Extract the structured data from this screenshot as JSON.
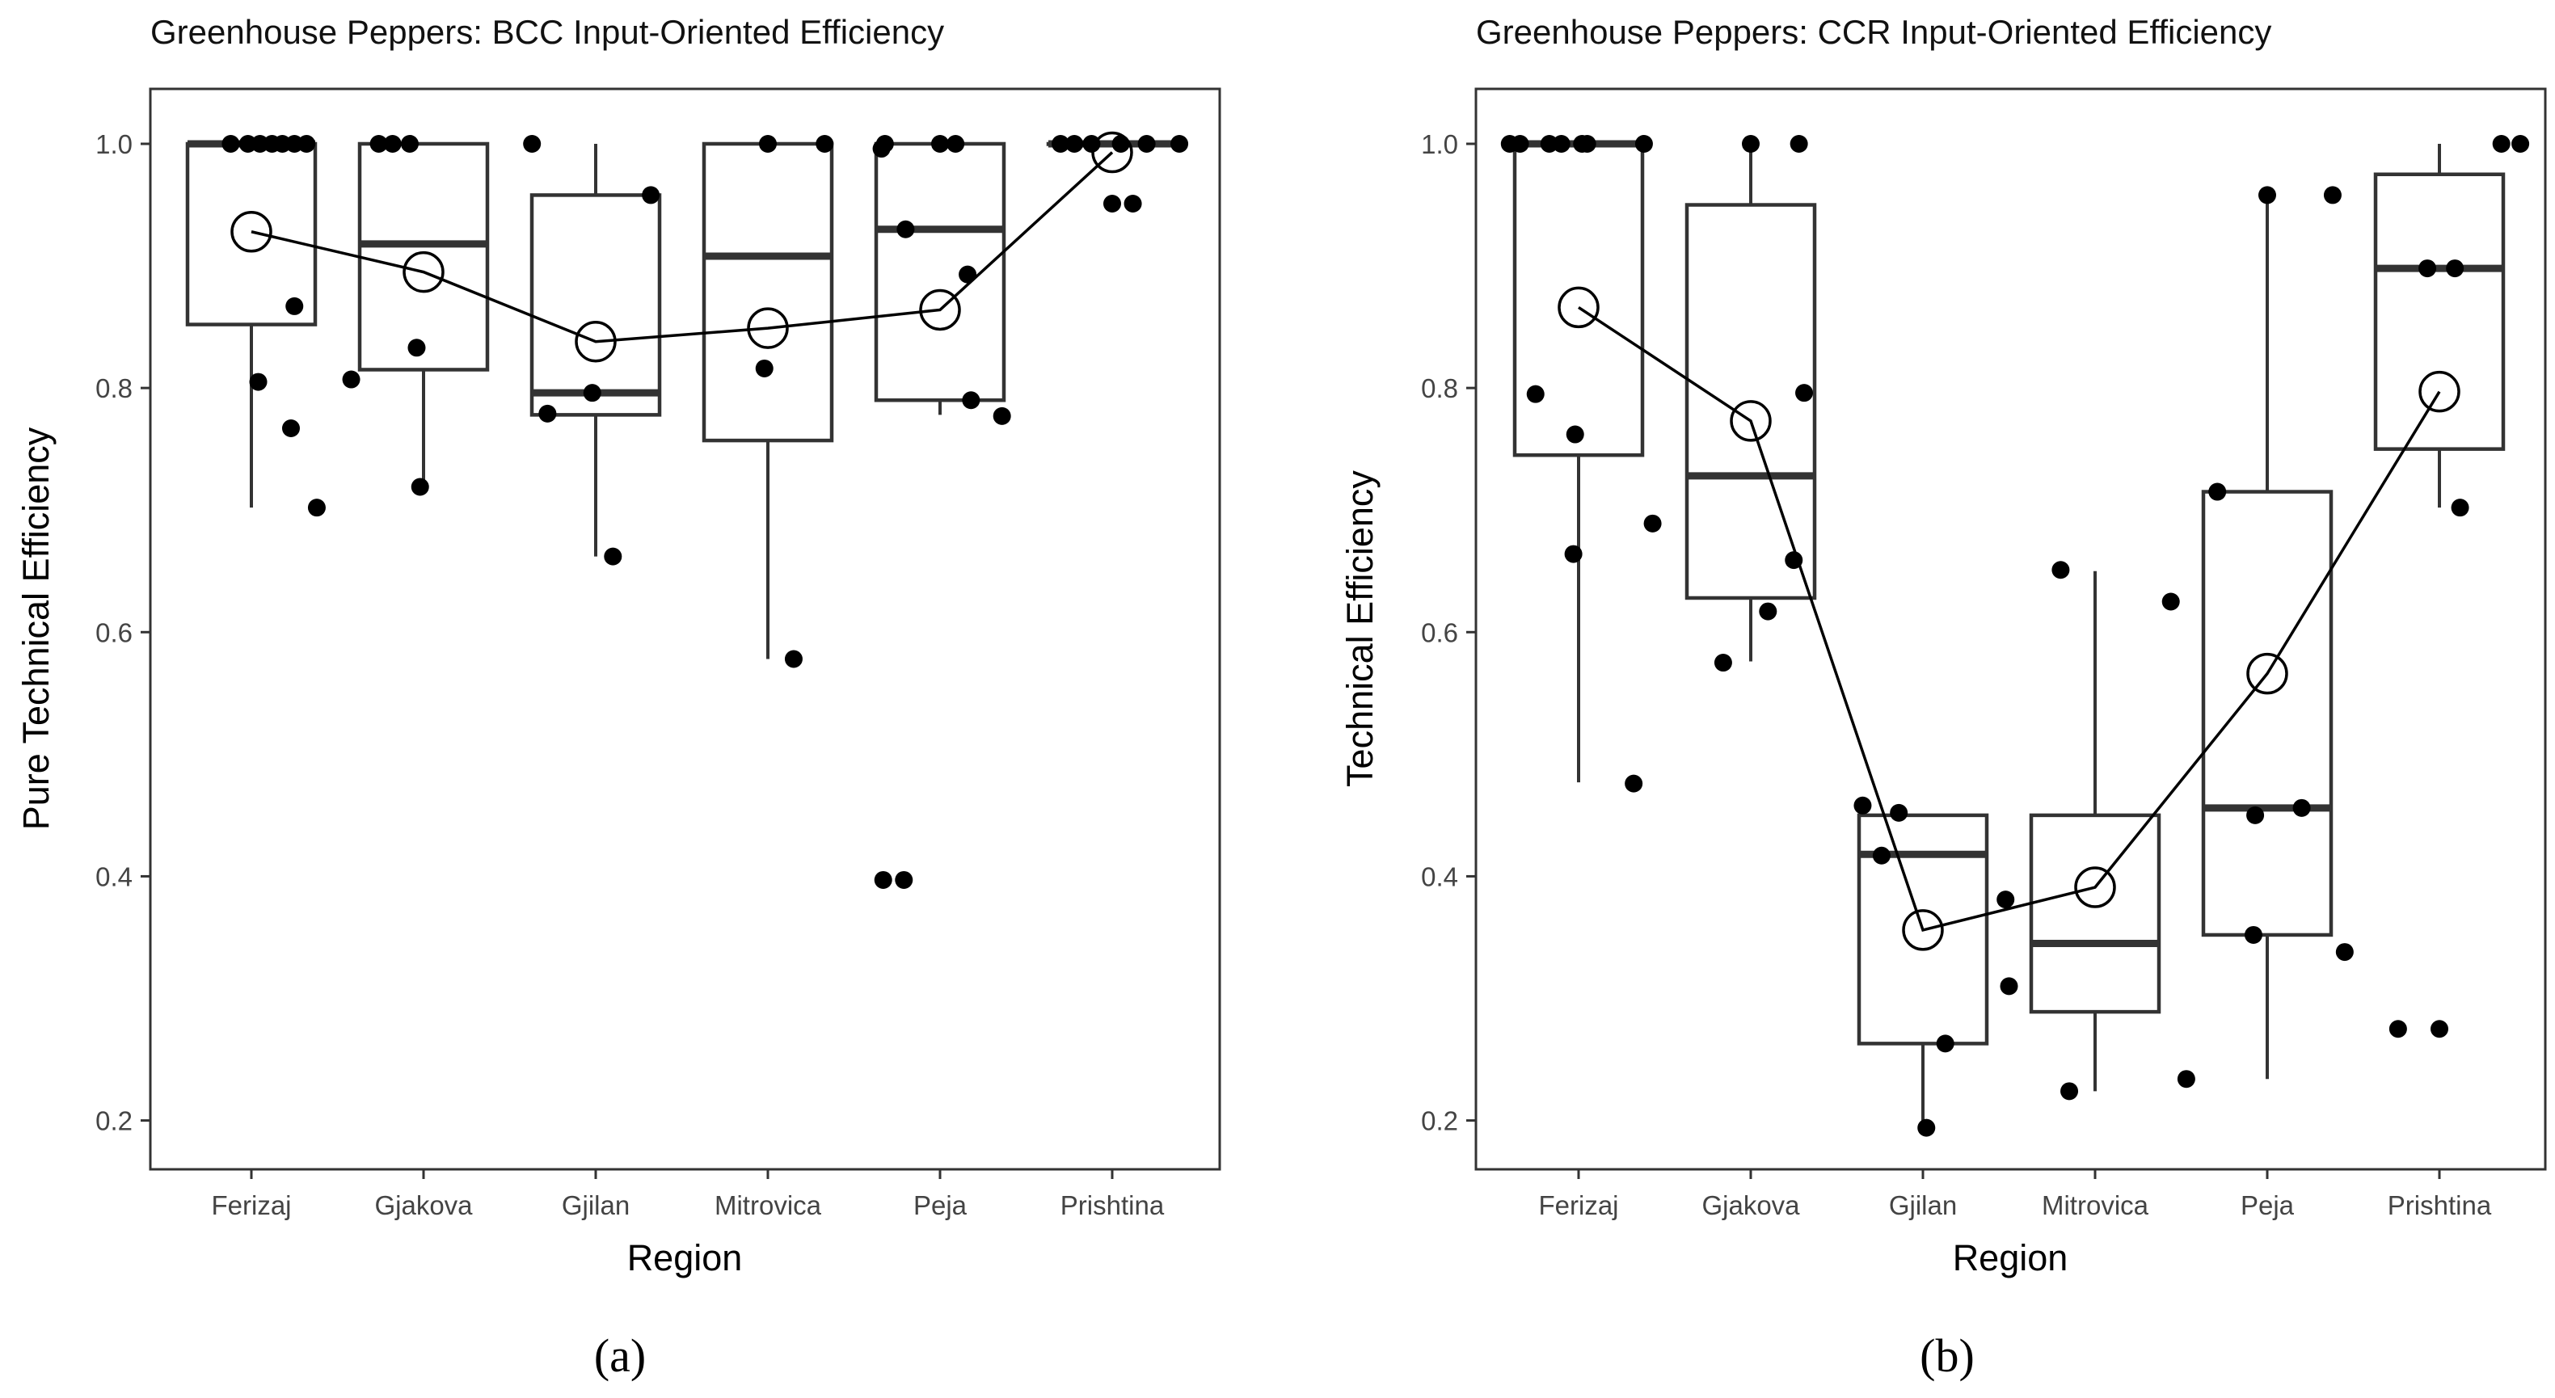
{
  "chart_data": [
    {
      "type": "boxplot",
      "label": "(a)",
      "title": "Greenhouse Peppers: BCC Input-Oriented Efficiency",
      "xlabel": "Region",
      "ylabel": "Pure Technical Efficiency",
      "ylim": [
        0.16,
        1.045
      ],
      "yticks": [
        "0.2",
        "0.4",
        "0.6",
        "0.8",
        "1.0"
      ],
      "categories": [
        "Ferizaj",
        "Gjakova",
        "Gjilan",
        "Mitrovica",
        "Peja",
        "Prishtina"
      ],
      "boxes": [
        {
          "region": "Ferizaj",
          "q1": 0.852,
          "median": 1.0,
          "q3": 1.0,
          "lower": 0.702,
          "upper": 1.0
        },
        {
          "region": "Gjakova",
          "q1": 0.815,
          "median": 0.918,
          "q3": 1.0,
          "lower": 0.719,
          "upper": 1.0
        },
        {
          "region": "Gjilan",
          "q1": 0.778,
          "median": 0.796,
          "q3": 0.958,
          "lower": 0.662,
          "upper": 1.0
        },
        {
          "region": "Mitrovica",
          "q1": 0.757,
          "median": 0.908,
          "q3": 1.0,
          "lower": 0.578,
          "upper": 1.0
        },
        {
          "region": "Peja",
          "q1": 0.79,
          "median": 0.93,
          "q3": 1.0,
          "lower": 0.778,
          "upper": 1.0
        },
        {
          "region": "Prishtina",
          "q1": 1.0,
          "median": 1.0,
          "q3": 1.0,
          "lower": 1.0,
          "upper": 1.0
        }
      ],
      "means": [
        0.928,
        0.895,
        0.838,
        0.849,
        0.864,
        0.993
      ],
      "points": [
        [
          -0.12,
          1.0
        ],
        [
          -0.02,
          1.0
        ],
        [
          0.05,
          1.0
        ],
        [
          0.12,
          1.0
        ],
        [
          0.18,
          1.0
        ],
        [
          0.25,
          1.0
        ],
        [
          0.32,
          1.0
        ],
        [
          0.04,
          0.805
        ],
        [
          0.25,
          0.867
        ],
        [
          0.23,
          0.767
        ],
        [
          0.38,
          0.702
        ],
        [
          0.58,
          0.807
        ],
        [
          0.74,
          1.0
        ],
        [
          0.82,
          1.0
        ],
        [
          0.92,
          1.0
        ],
        [
          0.96,
          0.833
        ],
        [
          0.98,
          0.719
        ],
        [
          1.63,
          1.0
        ],
        [
          1.72,
          0.779
        ],
        [
          1.98,
          0.796
        ],
        [
          2.1,
          0.662
        ],
        [
          2.32,
          0.958
        ],
        [
          2.98,
          0.816
        ],
        [
          3.0,
          1.0
        ],
        [
          3.15,
          0.578
        ],
        [
          3.33,
          1.0
        ],
        [
          3.66,
          0.996
        ],
        [
          3.67,
          0.397
        ],
        [
          3.68,
          1.0
        ],
        [
          3.79,
          0.397
        ],
        [
          3.8,
          0.93
        ],
        [
          4.0,
          1.0
        ],
        [
          4.09,
          1.0
        ],
        [
          4.16,
          0.893
        ],
        [
          4.18,
          0.79
        ],
        [
          4.36,
          0.777
        ],
        [
          4.7,
          1.0
        ],
        [
          4.78,
          1.0
        ],
        [
          4.88,
          1.0
        ],
        [
          5.0,
          0.951
        ],
        [
          5.05,
          1.0
        ],
        [
          5.12,
          0.951
        ],
        [
          5.2,
          1.0
        ],
        [
          5.39,
          1.0
        ]
      ]
    },
    {
      "type": "boxplot",
      "label": "(b)",
      "title": "Greenhouse Peppers: CCR Input-Oriented Efficiency",
      "xlabel": "Region",
      "ylabel": "Technical Efficiency",
      "ylim": [
        0.16,
        1.045
      ],
      "yticks": [
        "0.2",
        "0.4",
        "0.6",
        "0.8",
        "1.0"
      ],
      "categories": [
        "Ferizaj",
        "Gjakova",
        "Gjilan",
        "Mitrovica",
        "Peja",
        "Prishtina"
      ],
      "boxes": [
        {
          "region": "Ferizaj",
          "q1": 0.745,
          "median": 1.0,
          "q3": 1.0,
          "lower": 0.477,
          "upper": 1.0
        },
        {
          "region": "Gjakova",
          "q1": 0.628,
          "median": 0.728,
          "q3": 0.95,
          "lower": 0.576,
          "upper": 1.0
        },
        {
          "region": "Gjilan",
          "q1": 0.263,
          "median": 0.418,
          "q3": 0.45,
          "lower": 0.194,
          "upper": 0.45
        },
        {
          "region": "Mitrovica",
          "q1": 0.289,
          "median": 0.345,
          "q3": 0.45,
          "lower": 0.224,
          "upper": 0.65
        },
        {
          "region": "Peja",
          "q1": 0.352,
          "median": 0.456,
          "q3": 0.715,
          "lower": 0.234,
          "upper": 0.958
        },
        {
          "region": "Prishtina",
          "q1": 0.75,
          "median": 0.898,
          "q3": 0.975,
          "lower": 0.702,
          "upper": 1.0
        }
      ],
      "means": [
        0.866,
        0.773,
        0.356,
        0.391,
        0.566,
        0.797
      ],
      "points": [
        [
          -0.4,
          1.0
        ],
        [
          -0.34,
          1.0
        ],
        [
          -0.25,
          0.795
        ],
        [
          -0.17,
          1.0
        ],
        [
          -0.1,
          1.0
        ],
        [
          -0.02,
          0.762
        ],
        [
          0.02,
          1.0
        ],
        [
          -0.03,
          0.664
        ],
        [
          0.05,
          1.0
        ],
        [
          0.38,
          1.0
        ],
        [
          0.43,
          0.689
        ],
        [
          0.32,
          0.476
        ],
        [
          0.84,
          0.575
        ],
        [
          1.0,
          1.0
        ],
        [
          1.1,
          0.617
        ],
        [
          1.25,
          0.659
        ],
        [
          1.28,
          1.0
        ],
        [
          1.31,
          0.796
        ],
        [
          1.65,
          0.458
        ],
        [
          1.76,
          0.417
        ],
        [
          1.86,
          0.452
        ],
        [
          2.13,
          0.263
        ],
        [
          2.02,
          0.194
        ],
        [
          2.48,
          0.381
        ],
        [
          2.5,
          0.31
        ],
        [
          2.8,
          0.651
        ],
        [
          2.85,
          0.224
        ],
        [
          3.44,
          0.625
        ],
        [
          3.53,
          0.234
        ],
        [
          3.71,
          0.715
        ],
        [
          3.92,
          0.352
        ],
        [
          3.93,
          0.45
        ],
        [
          4.0,
          0.958
        ],
        [
          4.2,
          0.456
        ],
        [
          4.38,
          0.958
        ],
        [
          4.45,
          0.338
        ],
        [
          4.76,
          0.275
        ],
        [
          4.93,
          0.898
        ],
        [
          5.0,
          0.275
        ],
        [
          5.09,
          0.898
        ],
        [
          5.12,
          0.702
        ],
        [
          5.36,
          1.0
        ],
        [
          5.47,
          1.0
        ]
      ]
    }
  ]
}
